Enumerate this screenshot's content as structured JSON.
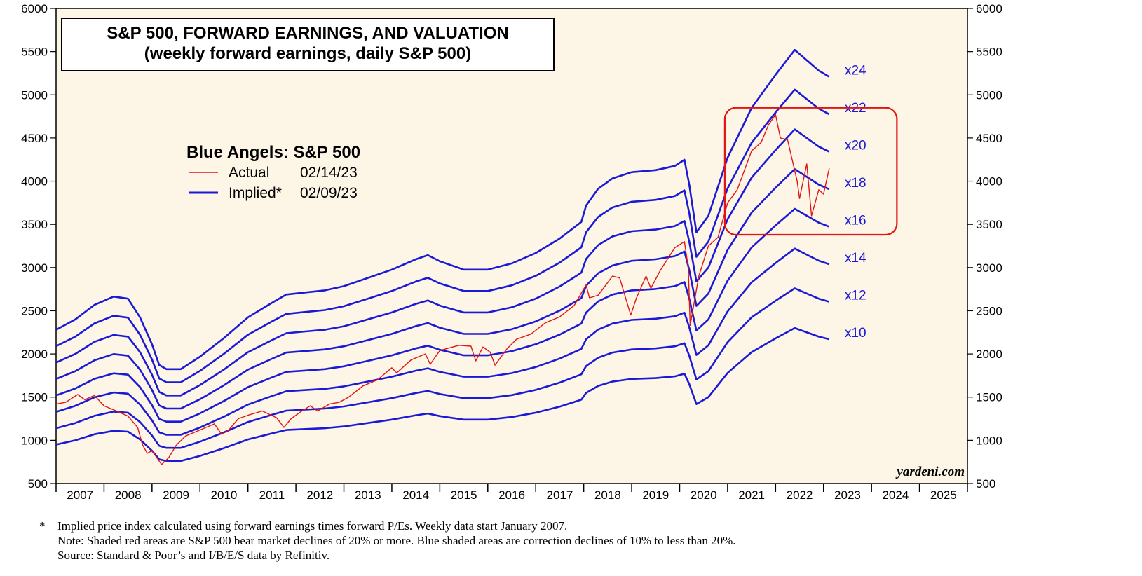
{
  "chart_data": {
    "type": "line",
    "title": "S&P 500, FORWARD EARNINGS, AND VALUATION",
    "subtitle": "(weekly forward earnings, daily S&P 500)",
    "ylim": [
      500,
      6000
    ],
    "y_ticks": [
      500,
      1000,
      1500,
      2000,
      2500,
      3000,
      3500,
      4000,
      4500,
      5000,
      5500,
      6000
    ],
    "xlim": [
      2007,
      2026
    ],
    "x_tick_labels": [
      "2007",
      "2008",
      "2009",
      "2010",
      "2011",
      "2012",
      "2013",
      "2014",
      "2015",
      "2016",
      "2017",
      "2018",
      "2019",
      "2020",
      "2021",
      "2022",
      "2023",
      "2024",
      "2025"
    ],
    "legend": {
      "title": "Blue Angels: S&P 500",
      "actual_label": "Actual",
      "actual_date": "02/14/23",
      "implied_label": "Implied*",
      "implied_date": "02/09/23"
    },
    "multiples": [
      10,
      12,
      14,
      16,
      18,
      20,
      22,
      24
    ],
    "multiple_labels": [
      "x10",
      "x12",
      "x14",
      "x16",
      "x18",
      "x20",
      "x22",
      "x24"
    ],
    "forward_earnings": {
      "x": [
        2007.0,
        2007.4,
        2007.8,
        2008.2,
        2008.5,
        2008.75,
        2009.0,
        2009.15,
        2009.3,
        2009.6,
        2010.0,
        2010.5,
        2011.0,
        2011.5,
        2011.8,
        2012.2,
        2012.6,
        2013.0,
        2013.5,
        2014.0,
        2014.5,
        2014.75,
        2015.0,
        2015.5,
        2016.0,
        2016.5,
        2017.0,
        2017.5,
        2017.95,
        2018.05,
        2018.3,
        2018.6,
        2019.0,
        2019.5,
        2019.9,
        2020.1,
        2020.2,
        2020.35,
        2020.6,
        2021.0,
        2021.5,
        2022.0,
        2022.4,
        2022.7,
        2022.9,
        2023.12
      ],
      "values": [
        95,
        100,
        107,
        111,
        110,
        101,
        88,
        78,
        76,
        76,
        82,
        91,
        101,
        108,
        112,
        113,
        114,
        116,
        120,
        124,
        129,
        131,
        128,
        124,
        124,
        127,
        132,
        139,
        147,
        155,
        163,
        168,
        171,
        172,
        174,
        177,
        165,
        142,
        150,
        178,
        202,
        218,
        230,
        224,
        220,
        217
      ]
    },
    "actual_sp500": {
      "x": [
        2007.0,
        2007.2,
        2007.45,
        2007.6,
        2007.8,
        2008.0,
        2008.3,
        2008.5,
        2008.7,
        2008.8,
        2008.9,
        2009.0,
        2009.2,
        2009.35,
        2009.5,
        2009.7,
        2010.0,
        2010.3,
        2010.45,
        2010.6,
        2010.8,
        2011.0,
        2011.3,
        2011.6,
        2011.75,
        2011.9,
        2012.1,
        2012.3,
        2012.45,
        2012.7,
        2012.9,
        2013.1,
        2013.4,
        2013.7,
        2014.0,
        2014.1,
        2014.4,
        2014.7,
        2014.8,
        2015.0,
        2015.4,
        2015.65,
        2015.75,
        2015.9,
        2016.05,
        2016.15,
        2016.4,
        2016.6,
        2016.9,
        2017.2,
        2017.5,
        2017.8,
        2018.05,
        2018.12,
        2018.3,
        2018.6,
        2018.75,
        2018.98,
        2019.1,
        2019.3,
        2019.4,
        2019.6,
        2019.9,
        2020.1,
        2020.18,
        2020.22,
        2020.4,
        2020.6,
        2020.8,
        2021.0,
        2021.2,
        2021.5,
        2021.7,
        2021.85,
        2022.0,
        2022.1,
        2022.25,
        2022.45,
        2022.5,
        2022.65,
        2022.75,
        2022.9,
        2023.0,
        2023.12
      ],
      "values": [
        1420,
        1440,
        1530,
        1470,
        1520,
        1400,
        1330,
        1280,
        1150,
        950,
        850,
        880,
        720,
        800,
        940,
        1050,
        1120,
        1190,
        1070,
        1120,
        1250,
        1290,
        1340,
        1260,
        1150,
        1250,
        1330,
        1400,
        1340,
        1420,
        1440,
        1500,
        1630,
        1700,
        1840,
        1780,
        1930,
        2000,
        1880,
        2040,
        2100,
        2090,
        1920,
        2080,
        2020,
        1870,
        2060,
        2170,
        2230,
        2360,
        2430,
        2560,
        2800,
        2650,
        2680,
        2900,
        2880,
        2450,
        2650,
        2900,
        2760,
        2970,
        3230,
        3300,
        3000,
        2330,
        2900,
        3250,
        3350,
        3750,
        3900,
        4350,
        4450,
        4650,
        4770,
        4500,
        4480,
        4000,
        3800,
        4200,
        3600,
        3900,
        3850,
        4150
      ]
    }
  },
  "source_credit": "yardeni.com",
  "footnotes": {
    "star": "*",
    "line1": "Implied price index calculated using forward earnings times forward P/Es. Weekly data start January 2007.",
    "line2": "Note: Shaded red areas are S&P 500 bear market declines of 20% or more.  Blue shaded areas are correction declines of 10% to less than 20%.",
    "line3": "Source: Standard & Poor’s and I/B/E/S data by Refinitiv."
  },
  "colors": {
    "implied": "#1a1ad6",
    "actual": "#e31414",
    "plot_bg": "#fdf5e6",
    "highlight_box": "#e31414"
  }
}
